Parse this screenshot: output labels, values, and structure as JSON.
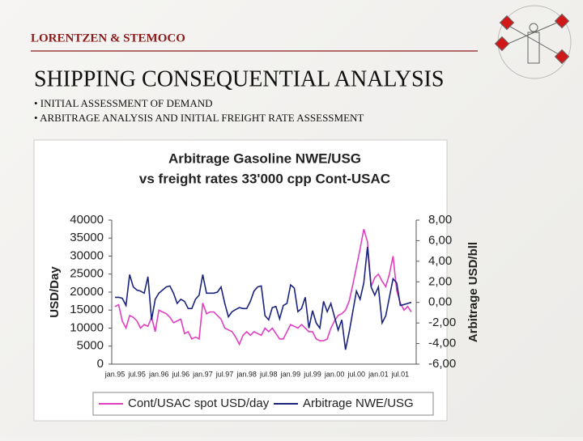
{
  "header": {
    "company": "LORENTZEN & STEMOCO",
    "title": "SHIPPING CONSEQUENTIAL ANALYSIS",
    "bullets": [
      "• INITIAL ASSESSMENT OF DEMAND",
      "• ARBITRAGE ANALYSIS AND INITIAL FREIGHT RATE ASSESSMENT"
    ]
  },
  "chart_data": {
    "type": "line",
    "title": "Arbitrage Gasoline NWE/USG",
    "subtitle": "vs freight rates 33'000 cpp Cont-USAC",
    "y_label": "USD/Day",
    "y2_label": "Arbitrage  USD/bll",
    "categories": [
      "jan.95",
      null,
      null,
      null,
      null,
      null,
      "jul.95",
      null,
      null,
      null,
      null,
      null,
      "jan.96",
      null,
      null,
      null,
      null,
      null,
      "jul.96",
      null,
      null,
      null,
      null,
      null,
      "jan.97",
      null,
      null,
      null,
      null,
      null,
      "jul.97",
      null,
      null,
      null,
      null,
      null,
      "jan.98",
      null,
      null,
      null,
      null,
      null,
      "jul.98",
      null,
      null,
      null,
      null,
      null,
      "jan.99",
      null,
      null,
      null,
      null,
      null,
      "jul.99",
      null,
      null,
      null,
      null,
      null,
      "jan.00",
      null,
      null,
      null,
      null,
      null,
      "jul.00",
      null,
      null,
      null,
      null,
      null,
      "jan.01",
      null,
      null,
      null,
      null,
      null,
      "jul.01",
      null,
      null,
      null
    ],
    "series": [
      {
        "name": "Cont/USAC spot USD/day",
        "color": "#e040c0",
        "axis": "y",
        "values": [
          16000,
          16500,
          12000,
          10000,
          13500,
          13000,
          12000,
          10000,
          11000,
          10500,
          13000,
          9000,
          15000,
          14500,
          14000,
          13000,
          11500,
          12000,
          12500,
          8500,
          9000,
          7000,
          7500,
          7000,
          17000,
          14000,
          14500,
          14500,
          13500,
          12500,
          10000,
          9500,
          9000,
          7500,
          5500,
          8000,
          9000,
          8000,
          9000,
          8500,
          8000,
          10000,
          9000,
          10000,
          8500,
          7000,
          7000,
          9000,
          11000,
          10500,
          10000,
          11000,
          10000,
          9000,
          9000,
          7000,
          6500,
          6500,
          7000,
          10000,
          12000,
          13500,
          14000,
          15000,
          17500,
          22000,
          27000,
          32000,
          37500,
          34000,
          21500,
          24000,
          25000,
          23000,
          21500,
          25000,
          30000,
          20500,
          17000,
          15000,
          16000,
          14500
        ]
      },
      {
        "name": "Arbitrage NWE/USG",
        "color": "#1a237e",
        "axis": "y2",
        "values": [
          0.5,
          0.5,
          0.4,
          -0.3,
          2.7,
          1.5,
          1.2,
          1.1,
          0.9,
          2.5,
          -1.7,
          0.3,
          0.9,
          1.2,
          1.5,
          1.6,
          0.9,
          -0.1,
          0.3,
          0.1,
          -0.6,
          -0.6,
          0.3,
          0.7,
          2.7,
          0.9,
          0.9,
          0.9,
          1.0,
          1.5,
          -0.1,
          -1.4,
          -0.9,
          -0.7,
          -0.5,
          -0.6,
          -0.6,
          0.1,
          1.1,
          1.5,
          1.6,
          -1.3,
          -1.7,
          -0.5,
          -0.4,
          -1.6,
          -0.3,
          -0.1,
          1.7,
          1.4,
          -0.9,
          -0.6,
          0.5,
          -2.5,
          -0.8,
          -2.0,
          -2.5,
          0.1,
          -0.9,
          -0.1,
          -1.4,
          -2.7,
          -1.7,
          -4.6,
          -2.9,
          -0.9,
          1.1,
          0.3,
          1.9,
          5.4,
          1.5,
          0.7,
          1.5,
          -2.0,
          -1.3,
          0.5,
          2.3,
          1.9,
          -0.3,
          -0.2,
          -0.1,
          0.0
        ]
      }
    ],
    "ylim": [
      0,
      40000
    ],
    "yticks": [
      0,
      5000,
      10000,
      15000,
      20000,
      25000,
      30000,
      35000,
      40000
    ],
    "y2lim": [
      -6,
      8
    ],
    "y2ticks": [
      {
        "value": -6,
        "label": "-6,00"
      },
      {
        "value": -4,
        "label": "-4,00"
      },
      {
        "value": -2,
        "label": "-2,00"
      },
      {
        "value": 0,
        "label": "0,00"
      },
      {
        "value": 2,
        "label": "2,00"
      },
      {
        "value": 4,
        "label": "4,00"
      },
      {
        "value": 6,
        "label": "6,00"
      },
      {
        "value": 8,
        "label": "8,00"
      }
    ],
    "grid": false,
    "legend": "bottom"
  }
}
